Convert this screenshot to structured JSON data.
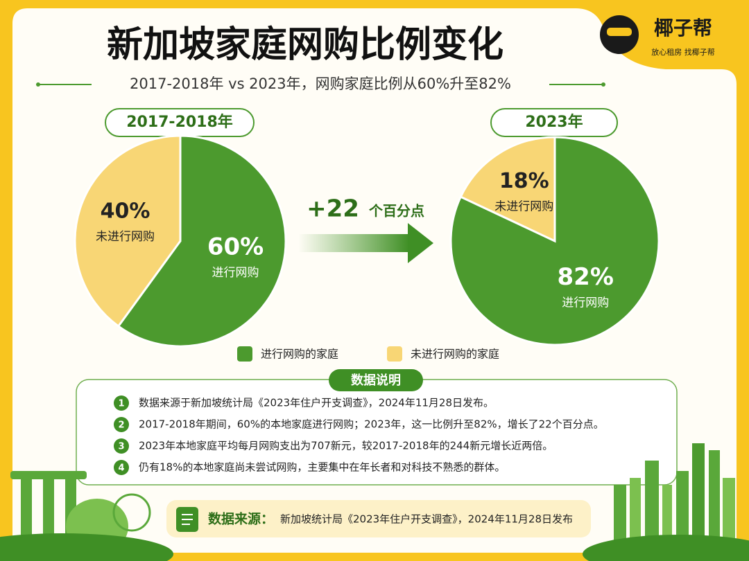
{
  "title": "新加坡家庭网购比例变化",
  "subtitle": "2017-2018年 vs 2023年，网购家庭比例从60%升至82%",
  "brand": {
    "name": "椰子帮",
    "slogan": "放心租房  找椰子帮"
  },
  "chart_data": [
    {
      "type": "pie",
      "title": "2017-2018年",
      "categories": [
        "进行网购",
        "未进行网购"
      ],
      "values": [
        60,
        40
      ],
      "value_labels": [
        "60%",
        "40%"
      ],
      "colors": [
        "#4c9a2e",
        "#f8d675"
      ]
    },
    {
      "type": "pie",
      "title": "2023年",
      "categories": [
        "进行网购",
        "未进行网购"
      ],
      "values": [
        82,
        18
      ],
      "value_labels": [
        "82%",
        "18%"
      ],
      "colors": [
        "#4c9a2e",
        "#f8d675"
      ]
    }
  ],
  "change": {
    "amount": "+22",
    "unit": "个百分点"
  },
  "legend": [
    "进行网购的家庭",
    "未进行网购的家庭"
  ],
  "notes": {
    "title": "数据说明",
    "items": [
      {
        "number": "1",
        "text": "数据来源于新加坡统计局《2023年住户开支调查》，2024年11月28日发布。"
      },
      {
        "number": "2",
        "text": "2017-2018年期间，60%的本地家庭进行网购；2023年，这一比例升至82%，增长了22个百分点。"
      },
      {
        "number": "3",
        "text": "2023年本地家庭平均每月网购支出为707新元，较2017-2018年的244新元增长近两倍。"
      },
      {
        "number": "4",
        "text": "仍有18%的本地家庭尚未尝试网购，主要集中在年长者和对科技不熟悉的群体。"
      }
    ]
  },
  "footer": {
    "label": "数据来源：",
    "text": "新加坡统计局《2023年住户开支调查》，2024年11月28日发布"
  }
}
